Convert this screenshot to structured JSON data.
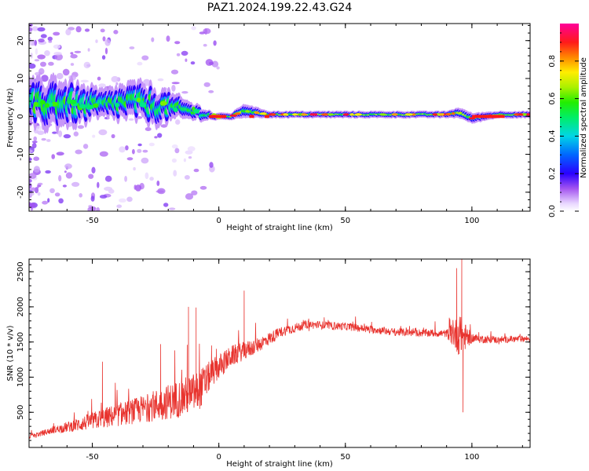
{
  "figure": {
    "title": "PAZ1.2024.199.22.43.G24"
  },
  "chart_data": [
    {
      "type": "heatmap",
      "name": "spectrogram",
      "xlabel": "Height of straight line (km)",
      "ylabel": "Frequency (Hz)",
      "xlim": [
        -75,
        123
      ],
      "ylim": [
        -25,
        24.5
      ],
      "xticks": [
        -50,
        0,
        50,
        100
      ],
      "yticks": [
        -20,
        -10,
        0,
        10,
        20
      ],
      "colorbar": {
        "label": "Normalized spectral amplitude",
        "range": [
          0,
          1
        ],
        "ticks": [
          0.0,
          0.2,
          0.4,
          0.6,
          0.8
        ],
        "colormap": "gist_ncar_r (purple-blue-cyan-green-yellow-red-magenta)"
      },
      "ridge": {
        "description": "Dominant spectral energy band around 0 Hz; broad and noisy below ~-10 km, narrow near 0 Hz above 0 km",
        "x": [
          -72,
          -65,
          -55,
          -45,
          -35,
          -25,
          -15,
          -8,
          -2,
          5,
          10,
          15,
          20,
          30,
          50,
          70,
          90,
          95,
          100,
          110,
          122
        ],
        "center_hz": [
          3,
          4,
          3,
          3,
          4,
          3,
          2,
          1,
          0,
          0,
          1.5,
          1,
          0.5,
          0.5,
          0.5,
          0.5,
          0.5,
          1,
          -0.5,
          0.5,
          0.5
        ],
        "width_hz": [
          6,
          7,
          5,
          4,
          5,
          5,
          3,
          2,
          1,
          1,
          2,
          1.5,
          1,
          1,
          1,
          1,
          1,
          1.5,
          1.5,
          1,
          1
        ]
      }
    },
    {
      "type": "line",
      "name": "snr",
      "xlabel": "Height of straight line (km)",
      "ylabel": "SNR (10 * v/v)",
      "xlim": [
        -75,
        123
      ],
      "ylim": [
        0,
        2680
      ],
      "xticks": [
        -50,
        0,
        50,
        100
      ],
      "yticks": [
        500,
        1000,
        1500,
        2000,
        2500
      ],
      "color": "#e8332e",
      "envelope": {
        "description": "Noisy SNR trace; mean trend with high-frequency variation",
        "x": [
          -75,
          -65,
          -55,
          -45,
          -35,
          -25,
          -15,
          -8,
          -3,
          5,
          15,
          25,
          35,
          50,
          70,
          90,
          95,
          100,
          110,
          123
        ],
        "mean": [
          150,
          250,
          330,
          420,
          500,
          600,
          700,
          800,
          1050,
          1300,
          1450,
          1650,
          1750,
          1720,
          1640,
          1620,
          1600,
          1550,
          1530,
          1550
        ],
        "spread": [
          60,
          100,
          200,
          300,
          350,
          450,
          550,
          600,
          400,
          300,
          220,
          150,
          120,
          110,
          110,
          110,
          600,
          130,
          100,
          90
        ]
      },
      "peaks": [
        {
          "x": 10,
          "y": 2230
        },
        {
          "x": -12,
          "y": 2000
        },
        {
          "x": -9,
          "y": 1990
        },
        {
          "x": 96,
          "y": 2680
        },
        {
          "x": 94,
          "y": 2550
        },
        {
          "x": 96.5,
          "y": 500
        },
        {
          "x": -46,
          "y": 1220
        },
        {
          "x": -23,
          "y": 1470
        },
        {
          "x": -12.5,
          "y": 1460
        }
      ]
    }
  ]
}
